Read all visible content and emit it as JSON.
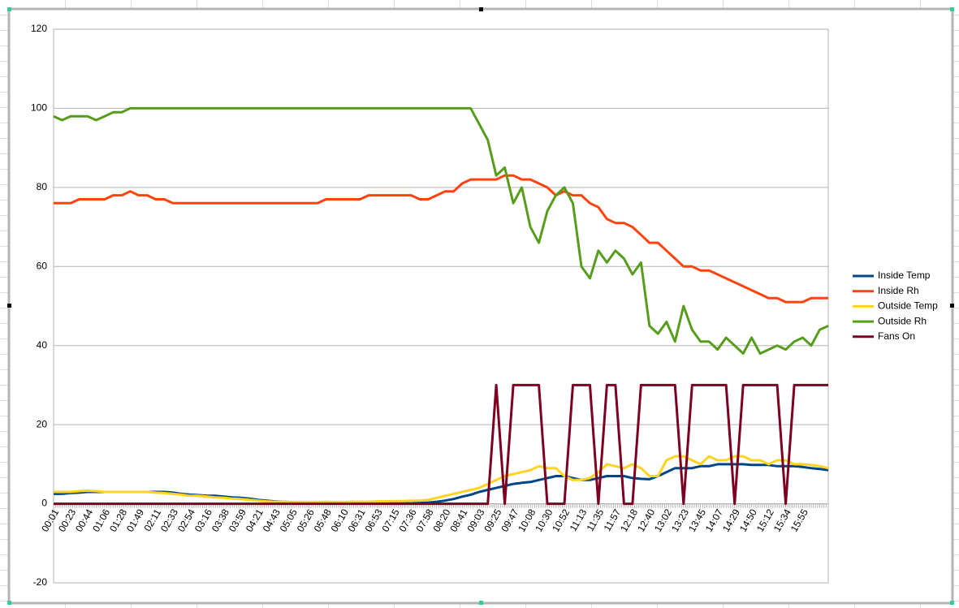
{
  "chart_data": {
    "type": "line",
    "categories": [
      "00:01",
      null,
      "00:23",
      null,
      "00:44",
      null,
      "01:06",
      null,
      "01:28",
      null,
      "01:49",
      null,
      "02:11",
      null,
      "02:33",
      null,
      "02:54",
      null,
      "03:16",
      null,
      "03:38",
      null,
      "03:59",
      null,
      "04:21",
      null,
      "04:43",
      null,
      "05:05",
      null,
      "05:26",
      null,
      "05:48",
      null,
      "06:10",
      null,
      "06:31",
      null,
      "06:53",
      null,
      "07:15",
      null,
      "07:36",
      null,
      "07:58",
      null,
      "08:20",
      null,
      "08:41",
      null,
      "09:03",
      null,
      "09:25",
      null,
      "09:47",
      null,
      "10:08",
      null,
      "10:30",
      null,
      "10:52",
      null,
      "11:13",
      null,
      "11:35",
      null,
      "11:57",
      null,
      "12:18",
      null,
      "12:40",
      null,
      "13:02",
      null,
      "13:23",
      null,
      "13:45",
      null,
      "14:07",
      null,
      "14:29",
      null,
      "14:50",
      null,
      "15:12",
      null,
      "15:34",
      null,
      "15:55",
      null,
      null,
      null
    ],
    "series": [
      {
        "name": "Inside Temp",
        "color": "#004586",
        "values": [
          2.5,
          2.5,
          2.7,
          2.8,
          3,
          3,
          3,
          3,
          3,
          3,
          3,
          3,
          3,
          3,
          2.8,
          2.5,
          2.3,
          2.2,
          2,
          2,
          1.8,
          1.6,
          1.5,
          1.3,
          1,
          0.8,
          0.6,
          0.5,
          0.4,
          0.3,
          0.2,
          0.2,
          0.2,
          0.2,
          0.2,
          0.2,
          0.2,
          0.2,
          0.2,
          0.2,
          0.1,
          0.1,
          0.1,
          0.2,
          0.3,
          0.5,
          0.8,
          1.2,
          1.8,
          2.3,
          3,
          3.5,
          4,
          4.5,
          5,
          5.3,
          5.5,
          6,
          6.5,
          7,
          7,
          6.5,
          6,
          6,
          6.5,
          7,
          7,
          7,
          6.5,
          6.3,
          6.2,
          7,
          8,
          9,
          9,
          9,
          9.5,
          9.5,
          10,
          10,
          10,
          10,
          9.8,
          9.8,
          9.8,
          9.5,
          9.5,
          9.5,
          9.3,
          9,
          8.8,
          8.5
        ]
      },
      {
        "name": "Inside Rh",
        "color": "#ff420e",
        "values": [
          76,
          76,
          76,
          77,
          77,
          77,
          77,
          78,
          78,
          79,
          78,
          78,
          77,
          77,
          76,
          76,
          76,
          76,
          76,
          76,
          76,
          76,
          76,
          76,
          76,
          76,
          76,
          76,
          76,
          76,
          76,
          76,
          77,
          77,
          77,
          77,
          77,
          78,
          78,
          78,
          78,
          78,
          78,
          77,
          77,
          78,
          79,
          79,
          81,
          82,
          82,
          82,
          82,
          83,
          83,
          82,
          82,
          81,
          80,
          78,
          79,
          78,
          78,
          76,
          75,
          72,
          71,
          71,
          70,
          68,
          66,
          66,
          64,
          62,
          60,
          60,
          59,
          59,
          58,
          57,
          56,
          55,
          54,
          53,
          52,
          52,
          51,
          51,
          51,
          52,
          52,
          52
        ]
      },
      {
        "name": "Outside Temp",
        "color": "#ffd320",
        "values": [
          3,
          3,
          3,
          3.2,
          3.3,
          3.2,
          3,
          3,
          3,
          3,
          3,
          3,
          2.8,
          2.7,
          2.5,
          2.3,
          2,
          2,
          1.8,
          1.6,
          1.5,
          1.3,
          1.2,
          1,
          0.8,
          0.6,
          0.5,
          0.5,
          0.4,
          0.4,
          0.4,
          0.4,
          0.5,
          0.4,
          0.4,
          0.5,
          0.5,
          0.5,
          0.6,
          0.6,
          0.7,
          0.7,
          0.8,
          0.8,
          1,
          1.5,
          2,
          2.5,
          3,
          3.5,
          4,
          5,
          6,
          7,
          7.5,
          8,
          8.5,
          9.5,
          9,
          9,
          7,
          6,
          6,
          6.5,
          8,
          10,
          9.5,
          9,
          10,
          9,
          7,
          7,
          11,
          12,
          12,
          11,
          10,
          12,
          11,
          11,
          12,
          12,
          11,
          11,
          10,
          11,
          11,
          10,
          10,
          9.8,
          9.5,
          9
        ]
      },
      {
        "name": "Outside Rh",
        "color": "#579d1c",
        "values": [
          98,
          97,
          98,
          98,
          98,
          97,
          98,
          99,
          99,
          100,
          100,
          100,
          100,
          100,
          100,
          100,
          100,
          100,
          100,
          100,
          100,
          100,
          100,
          100,
          100,
          100,
          100,
          100,
          100,
          100,
          100,
          100,
          100,
          100,
          100,
          100,
          100,
          100,
          100,
          100,
          100,
          100,
          100,
          100,
          100,
          100,
          100,
          100,
          100,
          100,
          96,
          92,
          83,
          85,
          76,
          80,
          70,
          66,
          74,
          78,
          80,
          76,
          60,
          57,
          64,
          61,
          64,
          62,
          58,
          61,
          45,
          43,
          46,
          41,
          50,
          44,
          41,
          41,
          39,
          42,
          40,
          38,
          42,
          38,
          39,
          40,
          39,
          41,
          42,
          40,
          44,
          45
        ]
      },
      {
        "name": "Fans On",
        "color": "#7e0021",
        "values": [
          0,
          0,
          0,
          0,
          0,
          0,
          0,
          0,
          0,
          0,
          0,
          0,
          0,
          0,
          0,
          0,
          0,
          0,
          0,
          0,
          0,
          0,
          0,
          0,
          0,
          0,
          0,
          0,
          0,
          0,
          0,
          0,
          0,
          0,
          0,
          0,
          0,
          0,
          0,
          0,
          0,
          0,
          0,
          0,
          0,
          0,
          0,
          0,
          0,
          0,
          0,
          0,
          30,
          0,
          30,
          30,
          30,
          30,
          0,
          0,
          0,
          30,
          30,
          30,
          0,
          30,
          30,
          0,
          0,
          30,
          30,
          30,
          30,
          30,
          0,
          30,
          30,
          30,
          30,
          30,
          0,
          30,
          30,
          30,
          30,
          30,
          0,
          30,
          30,
          30,
          30,
          30
        ]
      }
    ],
    "ylim": [
      -20,
      120
    ],
    "yticks": [
      -20,
      0,
      20,
      40,
      60,
      80,
      100,
      120
    ],
    "grid": true,
    "legend": "right"
  }
}
